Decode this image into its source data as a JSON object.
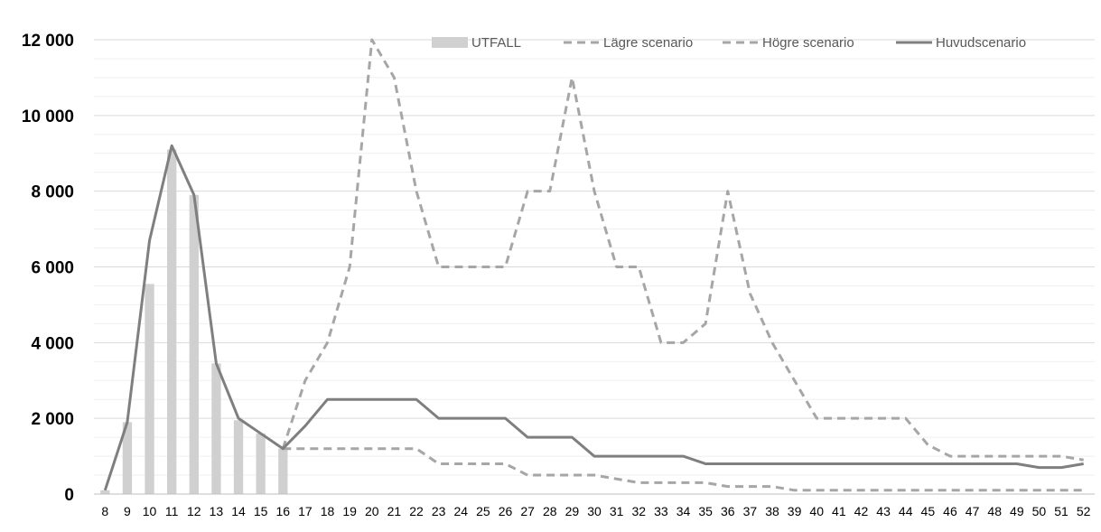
{
  "chart_data": {
    "type": "bar",
    "categories": [
      "8",
      "9",
      "10",
      "11",
      "12",
      "13",
      "14",
      "15",
      "16",
      "17",
      "18",
      "19",
      "20",
      "21",
      "22",
      "23",
      "24",
      "25",
      "26",
      "27",
      "28",
      "29",
      "30",
      "31",
      "32",
      "33",
      "34",
      "35",
      "36",
      "37",
      "38",
      "39",
      "40",
      "41",
      "42",
      "43",
      "44",
      "45",
      "46",
      "47",
      "48",
      "49",
      "50",
      "51",
      "52"
    ],
    "ylim": [
      0,
      12000
    ],
    "yticks": [
      0,
      2000,
      4000,
      6000,
      8000,
      10000,
      12000
    ],
    "ytick_labels": [
      "0",
      "2 000",
      "4 000",
      "6 000",
      "8 000",
      "10 000",
      "12 000"
    ],
    "grid": true,
    "legend_position": "top-right",
    "series": [
      {
        "name": "UTFALL",
        "type": "bar",
        "color": "#d0d0d0",
        "values": [
          100,
          1900,
          5550,
          9100,
          7900,
          3450,
          1950,
          1600,
          1200,
          null,
          null,
          null,
          null,
          null,
          null,
          null,
          null,
          null,
          null,
          null,
          null,
          null,
          null,
          null,
          null,
          null,
          null,
          null,
          null,
          null,
          null,
          null,
          null,
          null,
          null,
          null,
          null,
          null,
          null,
          null,
          null,
          null,
          null,
          null,
          null
        ]
      },
      {
        "name": "Lägre scenario",
        "type": "line",
        "dashed": true,
        "color": "#a6a6a6",
        "values": [
          null,
          null,
          null,
          null,
          null,
          null,
          null,
          null,
          1200,
          1200,
          1200,
          1200,
          1200,
          1200,
          1200,
          800,
          800,
          800,
          800,
          500,
          500,
          500,
          500,
          400,
          300,
          300,
          300,
          300,
          200,
          200,
          200,
          100,
          100,
          100,
          100,
          100,
          100,
          100,
          100,
          100,
          100,
          100,
          100,
          100,
          100
        ]
      },
      {
        "name": "Högre scenario",
        "type": "line",
        "dashed": true,
        "color": "#a6a6a6",
        "values": [
          null,
          null,
          null,
          null,
          null,
          null,
          null,
          null,
          1200,
          3000,
          4000,
          6000,
          12000,
          11000,
          8000,
          6000,
          6000,
          6000,
          6000,
          8000,
          8000,
          11000,
          8000,
          6000,
          6000,
          4000,
          4000,
          4500,
          8000,
          5300,
          4000,
          3000,
          2000,
          2000,
          2000,
          2000,
          2000,
          1300,
          1000,
          1000,
          1000,
          1000,
          1000,
          1000,
          900
        ]
      },
      {
        "name": "Huvudscenario",
        "type": "line",
        "dashed": false,
        "color": "#7f7f7f",
        "values": [
          100,
          1900,
          6700,
          9200,
          7900,
          3450,
          2000,
          1600,
          1200,
          1800,
          2500,
          2500,
          2500,
          2500,
          2500,
          2000,
          2000,
          2000,
          2000,
          1500,
          1500,
          1500,
          1000,
          1000,
          1000,
          1000,
          1000,
          800,
          800,
          800,
          800,
          800,
          800,
          800,
          800,
          800,
          800,
          800,
          800,
          800,
          800,
          800,
          700,
          700,
          800
        ]
      }
    ]
  }
}
